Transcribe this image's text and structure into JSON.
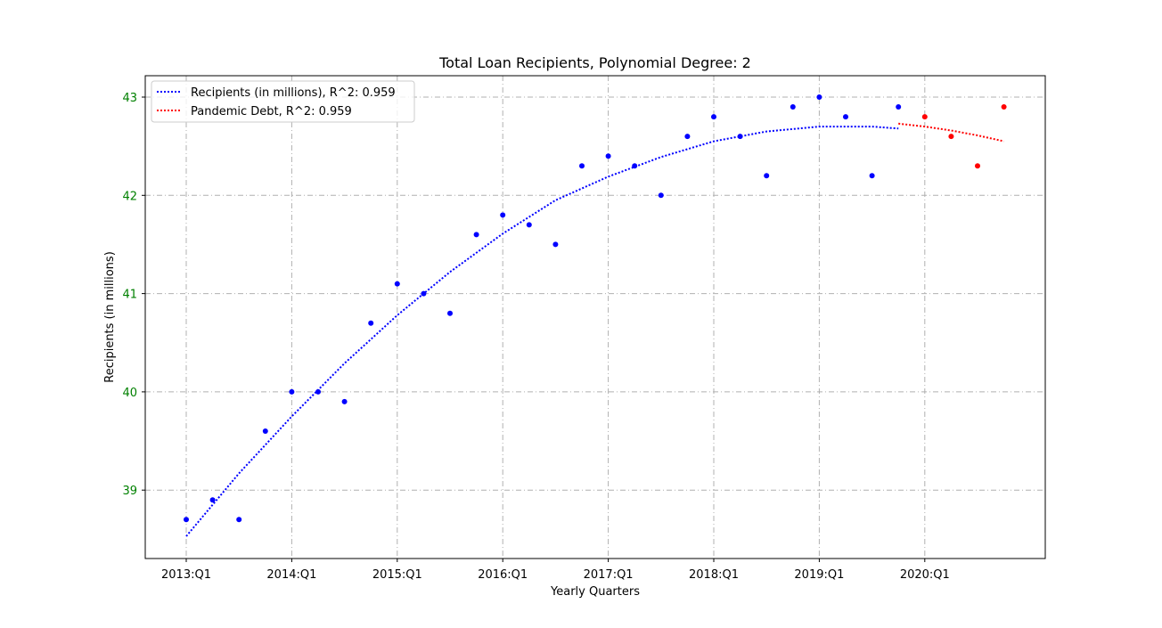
{
  "chart_data": {
    "type": "scatter",
    "title": "Total Loan Recipients, Polynomial Degree: 2",
    "xlabel": "Yearly Quarters",
    "ylabel": "Recipients (in millions)",
    "xtick_labels": [
      "2013:Q1",
      "2014:Q1",
      "2015:Q1",
      "2016:Q1",
      "2017:Q1",
      "2018:Q1",
      "2019:Q1",
      "2020:Q1"
    ],
    "yticks": [
      39,
      40,
      41,
      42,
      43
    ],
    "ylim": [
      38.3,
      43.2
    ],
    "grid": true,
    "legend_position": "top-left",
    "colors": {
      "tick_label_y": "#008000",
      "grid": "#b0b0b0"
    },
    "series": [
      {
        "name": "Recipients (in millions), R^2: 0.959",
        "color": "#0000ff",
        "x": [
          "2013:Q1",
          "2013:Q2",
          "2013:Q3",
          "2013:Q4",
          "2014:Q1",
          "2014:Q2",
          "2014:Q3",
          "2014:Q4",
          "2015:Q1",
          "2015:Q2",
          "2015:Q3",
          "2015:Q4",
          "2016:Q1",
          "2016:Q2",
          "2016:Q3",
          "2016:Q4",
          "2017:Q1",
          "2017:Q2",
          "2017:Q3",
          "2017:Q4",
          "2018:Q1",
          "2018:Q2",
          "2018:Q3",
          "2018:Q4",
          "2019:Q1",
          "2019:Q2",
          "2019:Q3",
          "2019:Q4"
        ],
        "values": [
          38.7,
          38.9,
          38.7,
          39.6,
          40.0,
          40.0,
          39.9,
          40.7,
          41.1,
          41.0,
          40.8,
          41.6,
          41.8,
          41.7,
          41.5,
          42.3,
          42.4,
          42.3,
          42.0,
          42.6,
          42.8,
          42.6,
          42.2,
          42.9,
          43.0,
          42.8,
          42.2,
          42.9
        ],
        "trend": {
          "style": "dotted",
          "x": [
            "2013:Q1",
            "2013:Q3",
            "2014:Q1",
            "2014:Q3",
            "2015:Q1",
            "2015:Q3",
            "2016:Q1",
            "2016:Q3",
            "2017:Q1",
            "2017:Q3",
            "2018:Q1",
            "2018:Q3",
            "2019:Q1",
            "2019:Q3",
            "2019:Q4"
          ],
          "values": [
            38.53,
            39.17,
            39.75,
            40.29,
            40.78,
            41.22,
            41.61,
            41.95,
            42.19,
            42.39,
            42.55,
            42.65,
            42.7,
            42.7,
            42.68
          ]
        }
      },
      {
        "name": "Pandemic Debt, R^2: 0.959",
        "color": "#ff0000",
        "x": [
          "2020:Q1",
          "2020:Q2",
          "2020:Q3",
          "2020:Q4"
        ],
        "values": [
          42.8,
          42.6,
          42.3,
          42.9
        ],
        "trend": {
          "style": "dotted",
          "x": [
            "2019:Q4",
            "2020:Q1",
            "2020:Q2",
            "2020:Q3",
            "2020:Q4"
          ],
          "values": [
            42.73,
            42.7,
            42.66,
            42.61,
            42.55
          ]
        }
      }
    ]
  }
}
